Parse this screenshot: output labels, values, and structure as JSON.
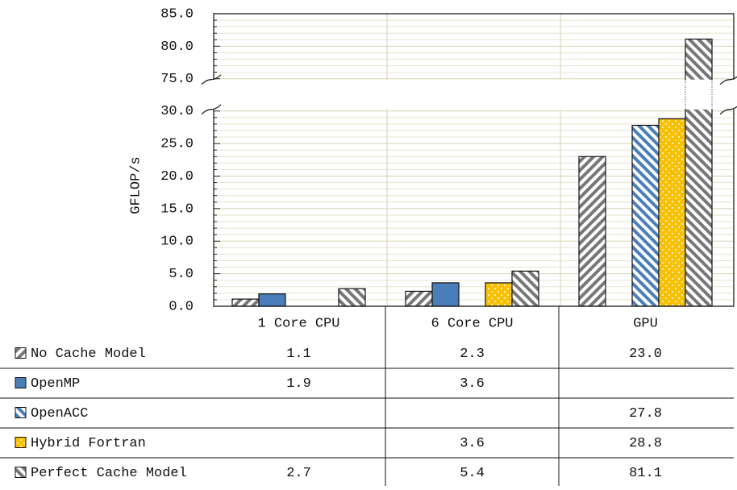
{
  "chart_data": {
    "type": "bar",
    "y_label": "GFLOP/s",
    "categories": [
      "1 Core CPU",
      "6 Core CPU",
      "GPU"
    ],
    "series": [
      {
        "name": "No Cache Model",
        "color": "#777777",
        "pattern": "/",
        "values": [
          1.1,
          2.3,
          23.0
        ],
        "value_labels": [
          "1.1",
          "2.3",
          "23.0"
        ]
      },
      {
        "name": "OpenMP",
        "color": "#4a7ebb",
        "pattern": "solid",
        "values": [
          1.9,
          3.6,
          null
        ],
        "value_labels": [
          "1.9",
          "3.6",
          null
        ]
      },
      {
        "name": "OpenACC",
        "color": "#4a7ebb",
        "pattern": "\\",
        "values": [
          null,
          null,
          27.8
        ],
        "value_labels": [
          null,
          null,
          "27.8"
        ]
      },
      {
        "name": "Hybrid Fortran",
        "color": "#f9c000",
        "pattern": "dots",
        "values": [
          null,
          3.6,
          28.8
        ],
        "value_labels": [
          null,
          "3.6",
          "28.8"
        ]
      },
      {
        "name": "Perfect Cache Model",
        "color": "#777777",
        "pattern": "\\",
        "values": [
          2.7,
          5.4,
          81.1
        ],
        "value_labels": [
          "2.7",
          "5.4",
          "81.1"
        ]
      }
    ],
    "ylim": [
      0,
      85
    ],
    "ybreak": [
      30,
      75
    ],
    "yticks": [
      {
        "value": 0,
        "label": "0.0"
      },
      {
        "value": 5,
        "label": "5.0"
      },
      {
        "value": 10,
        "label": "10.0"
      },
      {
        "value": 15,
        "label": "15.0"
      },
      {
        "value": 20,
        "label": "20.0"
      },
      {
        "value": 25,
        "label": "25.0"
      },
      {
        "value": 30,
        "label": "30.0"
      },
      {
        "value": 75,
        "label": "75.0"
      },
      {
        "value": 80,
        "label": "80.0"
      },
      {
        "value": 85,
        "label": "85.0"
      }
    ],
    "grid": true
  }
}
